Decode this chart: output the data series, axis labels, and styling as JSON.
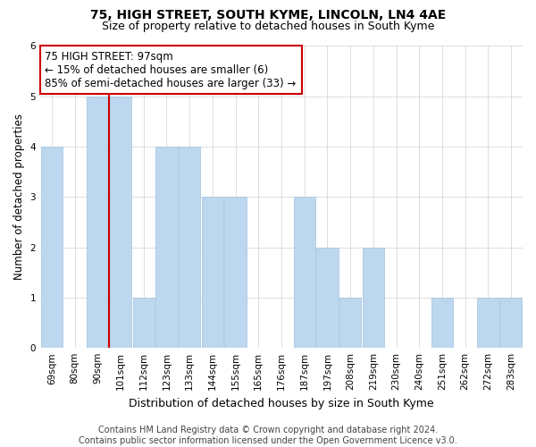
{
  "title": "75, HIGH STREET, SOUTH KYME, LINCOLN, LN4 4AE",
  "subtitle": "Size of property relative to detached houses in South Kyme",
  "xlabel": "Distribution of detached houses by size in South Kyme",
  "ylabel": "Number of detached properties",
  "categories": [
    "69sqm",
    "80sqm",
    "90sqm",
    "101sqm",
    "112sqm",
    "123sqm",
    "133sqm",
    "144sqm",
    "155sqm",
    "165sqm",
    "176sqm",
    "187sqm",
    "197sqm",
    "208sqm",
    "219sqm",
    "230sqm",
    "240sqm",
    "251sqm",
    "262sqm",
    "272sqm",
    "283sqm"
  ],
  "values": [
    4,
    0,
    5,
    5,
    1,
    4,
    4,
    3,
    3,
    0,
    0,
    3,
    2,
    1,
    2,
    0,
    0,
    1,
    0,
    1,
    1
  ],
  "bar_color": "#bdd7ee",
  "bar_edgecolor": "#a0c4e0",
  "red_line_after_index": 2,
  "annotation_line1": "75 HIGH STREET: 97sqm",
  "annotation_line2": "← 15% of detached houses are smaller (6)",
  "annotation_line3": "85% of semi-detached houses are larger (33) →",
  "annotation_box_color": "#ffffff",
  "annotation_box_edgecolor": "#cc0000",
  "ylim": [
    0,
    6
  ],
  "yticks": [
    0,
    1,
    2,
    3,
    4,
    5,
    6
  ],
  "footer": "Contains HM Land Registry data © Crown copyright and database right 2024.\nContains public sector information licensed under the Open Government Licence v3.0.",
  "title_fontsize": 10,
  "subtitle_fontsize": 9,
  "xlabel_fontsize": 9,
  "ylabel_fontsize": 8.5,
  "tick_fontsize": 7.5,
  "annotation_fontsize": 8.5,
  "footer_fontsize": 7
}
